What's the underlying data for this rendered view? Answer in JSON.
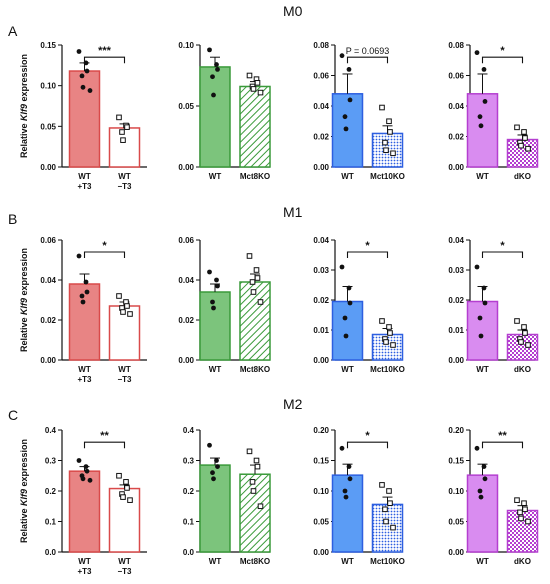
{
  "row_titles": [
    "M0",
    "M1",
    "M2"
  ],
  "panel_letters": [
    "A",
    "B",
    "C"
  ],
  "ylabel_prefix": "Relative ",
  "ylabel_gene": "Klf9",
  "ylabel_suffix": " expression",
  "colors": {
    "red": "#d94a4a",
    "red_fill": "#e88484",
    "green": "#3a9a3a",
    "green_fill": "#7cc47c",
    "blue": "#2d5fe0",
    "blue_fill": "#5b9cf5",
    "purple": "#b43fd0",
    "purple_fill": "#d98cf0",
    "black": "#111111"
  },
  "chart_data": [
    {
      "row": 0,
      "col": 0,
      "type": "bar",
      "ylim": [
        0,
        0.15
      ],
      "yticks": [
        "0.00",
        "0.05",
        "0.10",
        "0.15"
      ],
      "categories": [
        "WT\n+T3",
        "WT\n−T3"
      ],
      "values": [
        0.118,
        0.048
      ],
      "errors": [
        0.01,
        0.005
      ],
      "scheme": "red",
      "fill2": "none",
      "significance": "***",
      "points": [
        [
          0.142,
          0.128,
          0.118,
          0.112,
          0.098,
          0.094
        ],
        [
          0.061,
          0.051,
          0.049,
          0.043,
          0.033
        ]
      ]
    },
    {
      "row": 0,
      "col": 1,
      "type": "bar",
      "ylim": [
        0,
        0.1
      ],
      "yticks": [
        "0.00",
        "0.05",
        "0.10"
      ],
      "categories": [
        "WT",
        "Mct8KO"
      ],
      "values": [
        0.082,
        0.066
      ],
      "errors": [
        0.008,
        0.004
      ],
      "scheme": "green",
      "fill2": "hatch",
      "significance": "",
      "points": [
        [
          0.096,
          0.084,
          0.08,
          0.074,
          0.059
        ],
        [
          0.075,
          0.072,
          0.069,
          0.066,
          0.064,
          0.061
        ]
      ]
    },
    {
      "row": 0,
      "col": 2,
      "type": "bar",
      "ylim": [
        0,
        0.08
      ],
      "yticks": [
        "0.00",
        "0.02",
        "0.04",
        "0.06",
        "0.08"
      ],
      "categories": [
        "WT",
        "Mct10KO"
      ],
      "values": [
        0.048,
        0.022
      ],
      "errors": [
        0.013,
        0.005
      ],
      "scheme": "blue",
      "fill2": "dots",
      "significance": "P = 0.0693",
      "points": [
        [
          0.073,
          0.064,
          0.044,
          0.033,
          0.025
        ],
        [
          0.039,
          0.03,
          0.023,
          0.016,
          0.011,
          0.009
        ]
      ]
    },
    {
      "row": 0,
      "col": 3,
      "type": "bar",
      "ylim": [
        0,
        0.08
      ],
      "yticks": [
        "0.00",
        "0.02",
        "0.04",
        "0.06",
        "0.08"
      ],
      "categories": [
        "WT",
        "dKO"
      ],
      "values": [
        0.048,
        0.018
      ],
      "errors": [
        0.013,
        0.003
      ],
      "scheme": "purple",
      "fill2": "checker",
      "significance": "*",
      "points": [
        [
          0.075,
          0.064,
          0.043,
          0.033,
          0.027
        ],
        [
          0.026,
          0.023,
          0.019,
          0.016,
          0.014,
          0.012
        ]
      ]
    },
    {
      "row": 1,
      "col": 0,
      "type": "bar",
      "ylim": [
        0,
        0.06
      ],
      "yticks": [
        "0.00",
        "0.02",
        "0.04",
        "0.06"
      ],
      "categories": [
        "WT\n+T3",
        "WT\n−T3"
      ],
      "values": [
        0.038,
        0.027
      ],
      "errors": [
        0.005,
        0.002
      ],
      "scheme": "red",
      "fill2": "none",
      "significance": "*",
      "points": [
        [
          0.052,
          0.039,
          0.034,
          0.032,
          0.029
        ],
        [
          0.032,
          0.029,
          0.027,
          0.026,
          0.024,
          0.023
        ]
      ]
    },
    {
      "row": 1,
      "col": 1,
      "type": "bar",
      "ylim": [
        0,
        0.06
      ],
      "yticks": [
        "0.00",
        "0.02",
        "0.04",
        "0.06"
      ],
      "categories": [
        "WT",
        "Mct8KO"
      ],
      "values": [
        0.034,
        0.039
      ],
      "errors": [
        0.004,
        0.004
      ],
      "scheme": "green",
      "fill2": "hatch",
      "significance": "",
      "points": [
        [
          0.044,
          0.04,
          0.037,
          0.029,
          0.026
        ],
        [
          0.052,
          0.045,
          0.041,
          0.039,
          0.034,
          0.029
        ]
      ]
    },
    {
      "row": 1,
      "col": 2,
      "type": "bar",
      "ylim": [
        0,
        0.04
      ],
      "yticks": [
        "0.00",
        "0.01",
        "0.02",
        "0.03",
        "0.04"
      ],
      "categories": [
        "WT",
        "Mct10KO"
      ],
      "values": [
        0.0195,
        0.0085
      ],
      "errors": [
        0.005,
        0.002
      ],
      "scheme": "blue",
      "fill2": "dots",
      "significance": "*",
      "points": [
        [
          0.031,
          0.024,
          0.019,
          0.014,
          0.008
        ],
        [
          0.013,
          0.011,
          0.009,
          0.007,
          0.006,
          0.005
        ]
      ]
    },
    {
      "row": 1,
      "col": 3,
      "type": "bar",
      "ylim": [
        0,
        0.04
      ],
      "yticks": [
        "0.00",
        "0.01",
        "0.02",
        "0.03",
        "0.04"
      ],
      "categories": [
        "WT",
        "dKO"
      ],
      "values": [
        0.0195,
        0.0085
      ],
      "errors": [
        0.005,
        0.0015
      ],
      "scheme": "purple",
      "fill2": "checker",
      "significance": "*",
      "points": [
        [
          0.031,
          0.024,
          0.019,
          0.014,
          0.008
        ],
        [
          0.013,
          0.011,
          0.009,
          0.007,
          0.006,
          0.005
        ]
      ]
    },
    {
      "row": 2,
      "col": 0,
      "type": "bar",
      "ylim": [
        0,
        0.4
      ],
      "yticks": [
        "0.0",
        "0.1",
        "0.2",
        "0.3",
        "0.4"
      ],
      "categories": [
        "WT\n+T3",
        "WT\n−T3"
      ],
      "values": [
        0.265,
        0.208
      ],
      "errors": [
        0.015,
        0.012
      ],
      "scheme": "red",
      "fill2": "none",
      "significance": "**",
      "points": [
        [
          0.3,
          0.28,
          0.265,
          0.25,
          0.24,
          0.235
        ],
        [
          0.25,
          0.23,
          0.21,
          0.19,
          0.18,
          0.17
        ]
      ]
    },
    {
      "row": 2,
      "col": 1,
      "type": "bar",
      "ylim": [
        0,
        0.4
      ],
      "yticks": [
        "0.0",
        "0.1",
        "0.2",
        "0.3",
        "0.4"
      ],
      "categories": [
        "WT",
        "Mct8KO"
      ],
      "values": [
        0.285,
        0.255
      ],
      "errors": [
        0.023,
        0.03
      ],
      "scheme": "green",
      "fill2": "hatch",
      "significance": "",
      "points": [
        [
          0.35,
          0.3,
          0.28,
          0.26,
          0.24
        ],
        [
          0.33,
          0.3,
          0.28,
          0.23,
          0.2,
          0.15
        ]
      ]
    },
    {
      "row": 2,
      "col": 2,
      "type": "bar",
      "ylim": [
        0,
        0.2
      ],
      "yticks": [
        "0.00",
        "0.05",
        "0.10",
        "0.15",
        "0.20"
      ],
      "categories": [
        "WT",
        "Mct10KO"
      ],
      "values": [
        0.126,
        0.078
      ],
      "errors": [
        0.018,
        0.012
      ],
      "scheme": "blue",
      "fill2": "dots",
      "significance": "*",
      "points": [
        [
          0.17,
          0.14,
          0.12,
          0.1,
          0.09
        ],
        [
          0.11,
          0.1,
          0.08,
          0.07,
          0.05,
          0.04
        ]
      ]
    },
    {
      "row": 2,
      "col": 3,
      "type": "bar",
      "ylim": [
        0,
        0.2
      ],
      "yticks": [
        "0.00",
        "0.05",
        "0.10",
        "0.15",
        "0.20"
      ],
      "categories": [
        "WT",
        "dKO"
      ],
      "values": [
        0.126,
        0.068
      ],
      "errors": [
        0.018,
        0.008
      ],
      "scheme": "purple",
      "fill2": "checker",
      "significance": "**",
      "points": [
        [
          0.17,
          0.14,
          0.12,
          0.1,
          0.09
        ],
        [
          0.085,
          0.08,
          0.07,
          0.065,
          0.055,
          0.05
        ]
      ]
    }
  ]
}
